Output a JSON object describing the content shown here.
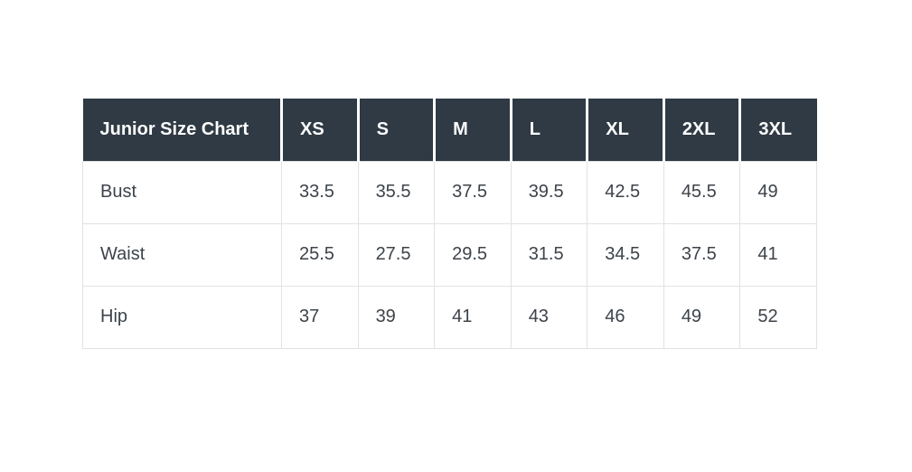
{
  "chart_data": {
    "type": "table",
    "title": "Junior Size Chart",
    "columns": [
      "Junior Size Chart",
      "XS",
      "S",
      "M",
      "L",
      "XL",
      "2XL",
      "3XL"
    ],
    "rows": [
      {
        "label": "Bust",
        "values": [
          33.5,
          35.5,
          37.5,
          39.5,
          42.5,
          45.5,
          49
        ]
      },
      {
        "label": "Waist",
        "values": [
          25.5,
          27.5,
          29.5,
          31.5,
          34.5,
          37.5,
          41
        ]
      },
      {
        "label": "Hip",
        "values": [
          37,
          39,
          41,
          43,
          46,
          49,
          52
        ]
      }
    ],
    "layout": {
      "header_style": "dark-row",
      "grid": "light-gray-borders",
      "background": "white"
    }
  },
  "colors": {
    "page_background": "#ffffff",
    "header_background": "#2f3a44",
    "header_text": "#fdfdfd",
    "body_text": "#3d434a",
    "cell_border": "#e2e2e2"
  }
}
